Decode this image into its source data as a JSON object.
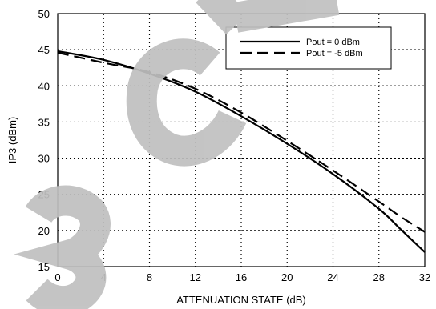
{
  "chart_data": {
    "type": "line",
    "xlabel": "ATTENUATION STATE (dB)",
    "ylabel": "IP3 (dBm)",
    "xlim": [
      0,
      32
    ],
    "ylim": [
      15,
      50
    ],
    "x_ticks": [
      0,
      4,
      8,
      12,
      16,
      20,
      24,
      28,
      32
    ],
    "y_ticks": [
      15,
      20,
      25,
      30,
      35,
      40,
      45,
      50
    ],
    "grid": true,
    "grid_style": "dotted",
    "legend_position": "top-right",
    "series": [
      {
        "name": "Pout =  0 dBm",
        "style": "solid",
        "color": "#000000",
        "x": [
          0,
          4,
          8,
          12,
          16,
          20,
          24,
          28,
          30,
          32
        ],
        "y": [
          44.8,
          43.6,
          41.7,
          39.2,
          35.8,
          32.0,
          27.8,
          23.0,
          20.0,
          17.0
        ]
      },
      {
        "name": "Pout = -5 dBm",
        "style": "dashed",
        "color": "#000000",
        "x": [
          0,
          4,
          8,
          12,
          16,
          20,
          24,
          28,
          30,
          32
        ],
        "y": [
          44.6,
          43.2,
          41.9,
          39.6,
          36.3,
          32.4,
          28.3,
          24.0,
          21.8,
          19.8
        ]
      }
    ]
  },
  "watermark": {
    "text": "OBSOLETE",
    "color": "#000000"
  }
}
